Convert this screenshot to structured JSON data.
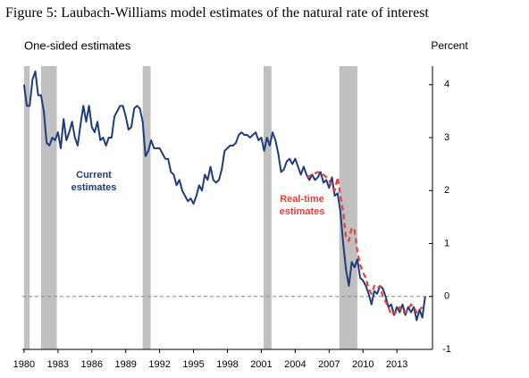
{
  "chart_data": {
    "type": "line",
    "title": "Figure 5: Laubach-Williams model estimates of the natural rate of interest",
    "subtitle": "One-sided estimates",
    "y_axis_label": "Percent",
    "xlim": [
      1979.85,
      2016.15
    ],
    "ylim": [
      -1,
      4.35
    ],
    "xticks": [
      1980,
      1983,
      1986,
      1989,
      1992,
      1995,
      1998,
      2001,
      2004,
      2007,
      2010,
      2013
    ],
    "yticks": [
      -1,
      0,
      1,
      2,
      3,
      4
    ],
    "reference_line": 0,
    "shaded_ranges": [
      [
        1980,
        1980.5
      ],
      [
        1981.5,
        1982.9
      ],
      [
        1990.5,
        1991.2
      ],
      [
        2001.2,
        2001.9
      ],
      [
        2007.9,
        2009.5
      ]
    ],
    "series": [
      {
        "name": "Current estimates",
        "color": "#1f3d7a",
        "dash": false,
        "x": [
          1980,
          1980.25,
          1980.5,
          1980.75,
          1981,
          1981.25,
          1981.5,
          1981.75,
          1982,
          1982.25,
          1982.5,
          1982.75,
          1983,
          1983.25,
          1983.5,
          1983.75,
          1984,
          1984.25,
          1984.5,
          1984.75,
          1985,
          1985.25,
          1985.5,
          1985.75,
          1986,
          1986.25,
          1986.5,
          1986.75,
          1987,
          1987.25,
          1987.5,
          1987.75,
          1988,
          1988.25,
          1988.5,
          1988.75,
          1989,
          1989.25,
          1989.5,
          1989.75,
          1990,
          1990.25,
          1990.5,
          1990.75,
          1991,
          1991.25,
          1991.5,
          1991.75,
          1992,
          1992.25,
          1992.5,
          1992.75,
          1993,
          1993.25,
          1993.5,
          1993.75,
          1994,
          1994.25,
          1994.5,
          1994.75,
          1995,
          1995.25,
          1995.5,
          1995.75,
          1996,
          1996.25,
          1996.5,
          1996.75,
          1997,
          1997.25,
          1997.5,
          1997.75,
          1998,
          1998.25,
          1998.5,
          1998.75,
          1999,
          1999.25,
          1999.5,
          1999.75,
          2000,
          2000.25,
          2000.5,
          2000.75,
          2001,
          2001.25,
          2001.5,
          2001.75,
          2002,
          2002.25,
          2002.5,
          2002.75,
          2003,
          2003.25,
          2003.5,
          2003.75,
          2004,
          2004.25,
          2004.5,
          2004.75,
          2005,
          2005.25,
          2005.5,
          2005.75,
          2006,
          2006.25,
          2006.5,
          2006.75,
          2007,
          2007.25,
          2007.5,
          2007.75,
          2008,
          2008.25,
          2008.5,
          2008.75,
          2009,
          2009.25,
          2009.5,
          2009.75,
          2010,
          2010.25,
          2010.5,
          2010.75,
          2011,
          2011.25,
          2011.5,
          2011.75,
          2012,
          2012.25,
          2012.5,
          2012.75,
          2013,
          2013.25,
          2013.5,
          2013.75,
          2014,
          2014.25,
          2014.5,
          2014.75,
          2015,
          2015.25,
          2015.5
        ],
        "values": [
          4.0,
          3.6,
          3.6,
          4.1,
          4.25,
          3.8,
          3.8,
          3.5,
          2.9,
          2.85,
          3.0,
          2.95,
          3.1,
          2.8,
          3.35,
          2.95,
          3.1,
          3.3,
          3.0,
          2.85,
          3.25,
          3.6,
          3.3,
          3.6,
          3.2,
          3.1,
          3.3,
          2.95,
          3.0,
          2.85,
          3.0,
          3.0,
          3.4,
          3.5,
          3.6,
          3.6,
          3.4,
          3.15,
          3.2,
          3.55,
          3.6,
          3.55,
          3.3,
          2.65,
          2.75,
          2.95,
          2.8,
          2.8,
          2.8,
          2.7,
          2.6,
          2.6,
          2.35,
          2.3,
          2.1,
          2.2,
          2.0,
          1.9,
          1.8,
          1.85,
          1.75,
          1.9,
          2.1,
          2.0,
          2.3,
          2.2,
          2.45,
          2.2,
          2.15,
          2.2,
          2.4,
          2.75,
          2.8,
          2.85,
          2.85,
          2.9,
          3.05,
          3.1,
          3.05,
          3.05,
          3.0,
          3.05,
          3.1,
          2.95,
          3.0,
          2.75,
          3.0,
          2.85,
          3.1,
          2.95,
          2.7,
          2.35,
          2.4,
          2.55,
          2.6,
          2.5,
          2.6,
          2.45,
          2.3,
          2.45,
          2.3,
          2.2,
          2.3,
          2.2,
          2.25,
          2.35,
          2.15,
          2.2,
          2.05,
          2.25,
          1.9,
          1.95,
          1.6,
          1.0,
          0.5,
          0.2,
          0.65,
          0.55,
          0.7,
          0.35,
          0.3,
          0.2,
          0.05,
          -0.15,
          0.1,
          0.05,
          0.2,
          0.15,
          0.0,
          -0.2,
          -0.15,
          -0.35,
          -0.2,
          -0.3,
          -0.15,
          -0.35,
          -0.2,
          -0.3,
          -0.2,
          -0.45,
          -0.25,
          -0.4,
          0.0
        ]
      },
      {
        "name": "Real-time estimates",
        "color": "#e8413a",
        "dash": true,
        "x": [
          2005,
          2005.5,
          2006,
          2006.5,
          2007,
          2007.25,
          2007.5,
          2007.75,
          2008,
          2008.25,
          2008.5,
          2008.75,
          2009,
          2009.25,
          2009.5,
          2009.75,
          2010,
          2010.25,
          2010.5,
          2010.75,
          2011,
          2011.25,
          2011.5,
          2011.75,
          2012,
          2012.25,
          2012.5,
          2012.75,
          2013,
          2013.25,
          2013.5,
          2013.75,
          2014,
          2014.25,
          2014.5,
          2014.75,
          2015,
          2015.25
        ],
        "values": [
          2.25,
          2.3,
          2.35,
          2.3,
          2.2,
          2.05,
          2.0,
          2.25,
          1.9,
          1.6,
          1.1,
          1.05,
          1.3,
          1.25,
          0.85,
          0.6,
          0.45,
          0.35,
          0.15,
          0.05,
          0.2,
          0.15,
          0.2,
          0.0,
          -0.1,
          -0.2,
          -0.35,
          -0.3,
          -0.3,
          -0.2,
          -0.3,
          -0.3,
          -0.25,
          -0.15,
          -0.2,
          -0.3,
          -0.25,
          -0.2
        ]
      }
    ]
  }
}
